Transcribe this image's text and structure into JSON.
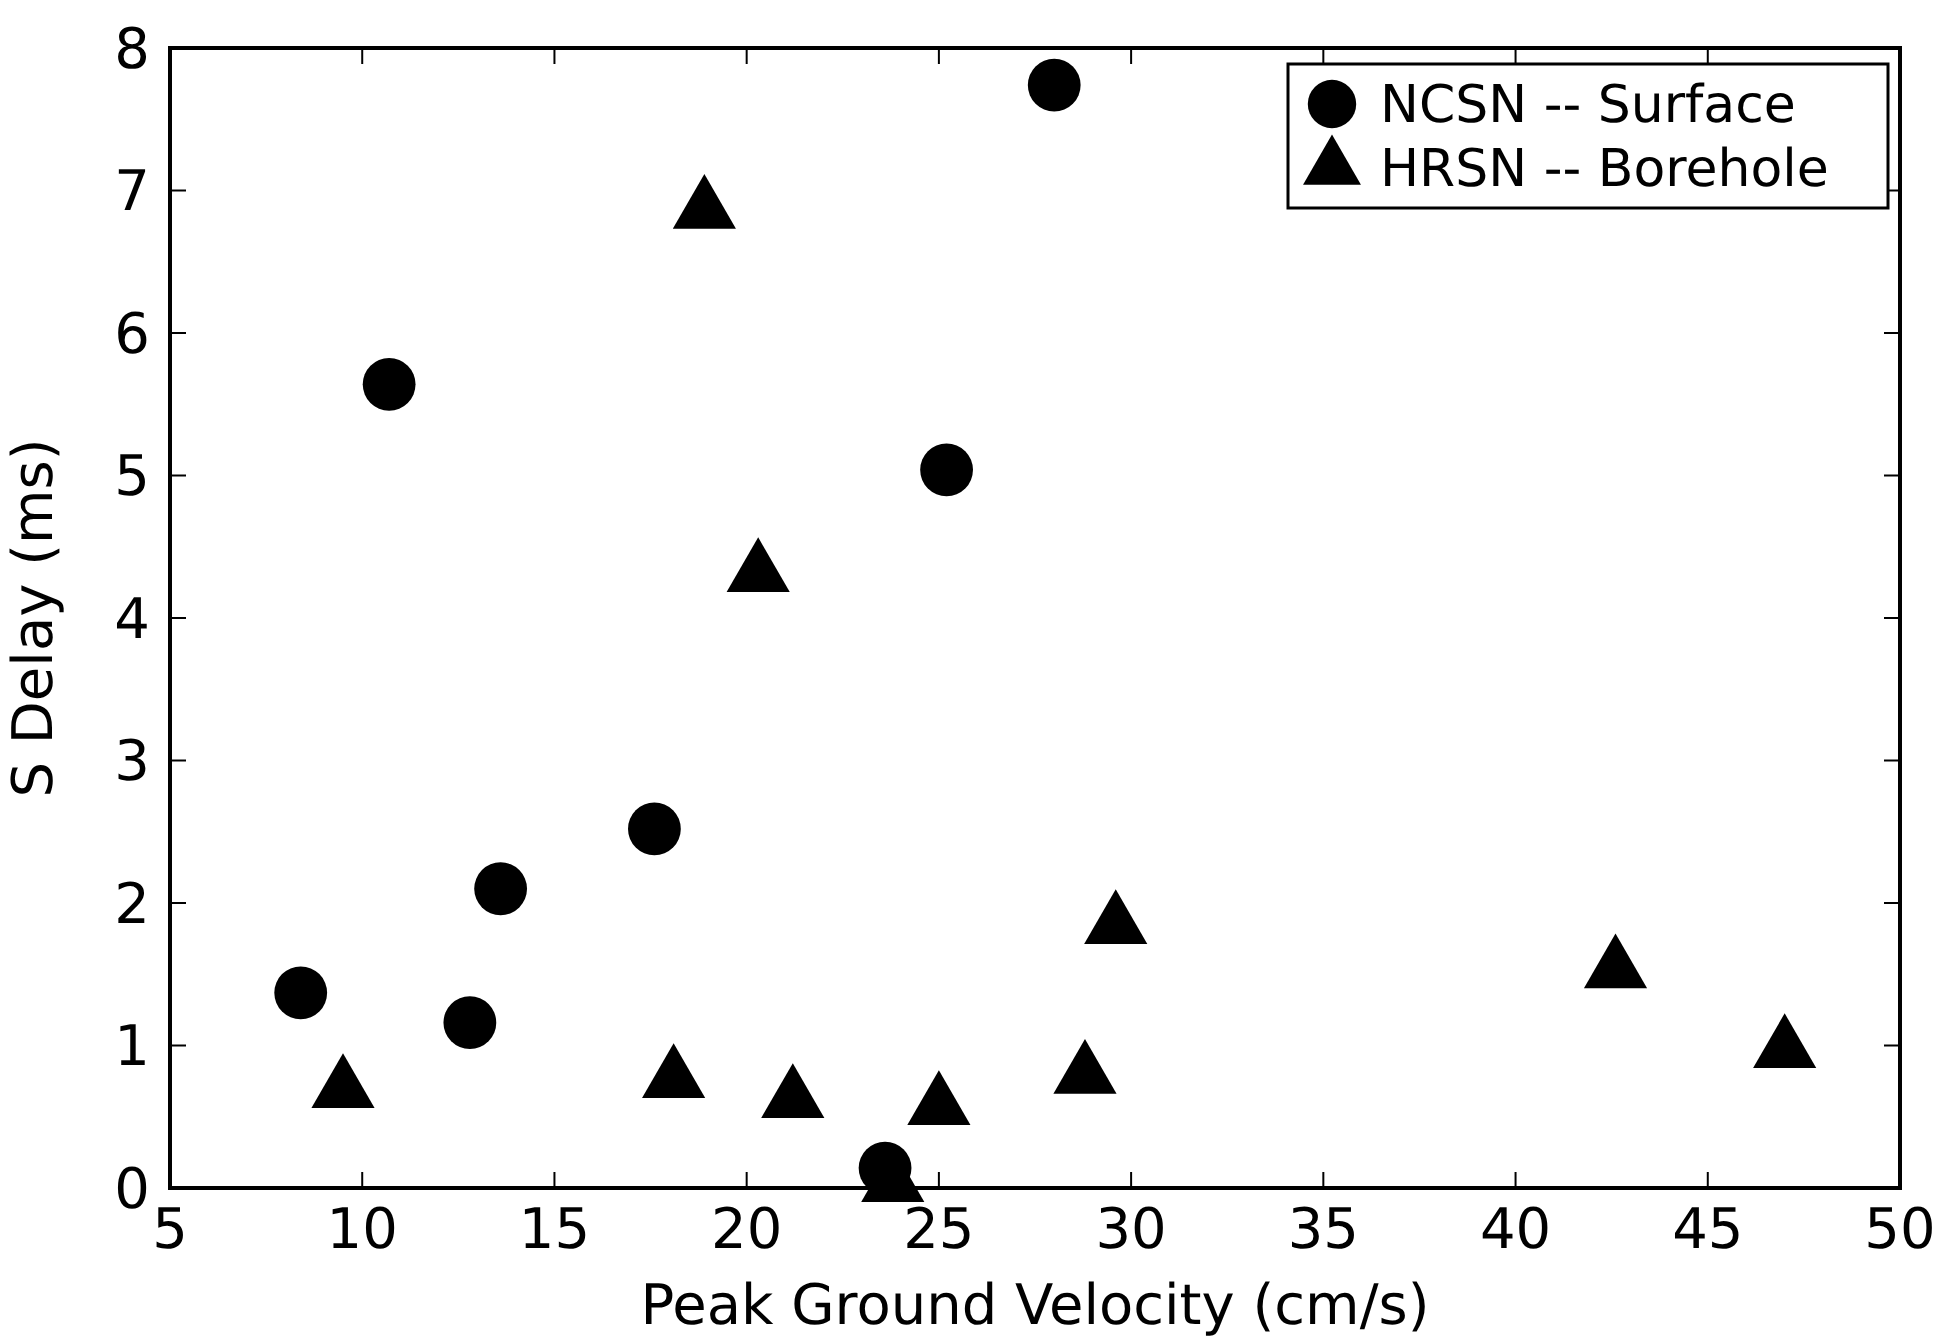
{
  "chart_data": {
    "type": "scatter",
    "xlabel": "Peak Ground Velocity (cm/s)",
    "ylabel": "S Delay (ms)",
    "xlim": [
      5,
      50
    ],
    "xticks": [
      5,
      10,
      15,
      20,
      25,
      30,
      35,
      40,
      45,
      50
    ],
    "ylim": [
      0,
      8
    ],
    "yticks": [
      0,
      1,
      2,
      3,
      4,
      5,
      6,
      7,
      8
    ],
    "legend": "top right",
    "grid": false,
    "series": [
      {
        "name": "NCSN -- Surface",
        "color": "#000000",
        "marker": "circle",
        "x": [
          8.4,
          10.7,
          13.6,
          12.8,
          17.6,
          23.6,
          25.2,
          28.0
        ],
        "values": [
          1.37,
          5.64,
          2.1,
          1.16,
          2.52,
          0.14,
          5.04,
          7.74
        ]
      },
      {
        "name": "HRSN -- Borehole",
        "color": "#000000",
        "marker": "triangle",
        "x": [
          9.5,
          18.1,
          21.2,
          25.0,
          23.8,
          18.9,
          20.3,
          29.6,
          28.8,
          42.6,
          47.0
        ],
        "values": [
          0.69,
          0.76,
          0.62,
          0.57,
          0.03,
          6.86,
          4.31,
          1.84,
          0.79,
          1.53,
          0.97
        ]
      }
    ]
  }
}
